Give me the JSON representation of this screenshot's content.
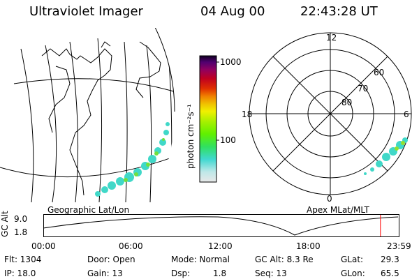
{
  "header": {
    "title": "Ultraviolet Imager",
    "date": "04 Aug 00",
    "time": "22:43:28 UT"
  },
  "colorbar": {
    "unit": "photon cm⁻²s⁻¹",
    "ticks": [
      "1000",
      "100"
    ],
    "stops": [
      "#e8e8e8",
      "#bfe8e8",
      "#40d8d0",
      "#30e060",
      "#60f000",
      "#a8f000",
      "#f0f000",
      "#f0c000",
      "#f08000",
      "#e03000",
      "#c00020",
      "#900060",
      "#500070",
      "#100020"
    ]
  },
  "map_left": {
    "label": "Geographic Lat/Lon"
  },
  "polar": {
    "label": "Apex MLat/MLT",
    "mlt_labels": {
      "top": "12",
      "left": "18",
      "right": "6",
      "bottom": "0"
    },
    "lat_labels": [
      "60",
      "70",
      "80"
    ]
  },
  "timeline": {
    "axis_title": "GC Alt",
    "y_ticks": [
      "9.0",
      "1.8"
    ],
    "x_ticks": [
      "00:00",
      "06:00",
      "12:00",
      "18:00",
      "23:59"
    ],
    "current_marker_hours": 22.72,
    "marker_color": "#ff0000"
  },
  "status": {
    "flt": "Flt: 1304",
    "door": "Door: Open",
    "mode": "Mode: Normal",
    "gc_alt": "GC Alt: 8.3 Re",
    "glat_label": "GLat:",
    "glat_value": "29.3",
    "ip": "IP: 18.0",
    "gain": "Gain: 13",
    "dsp_label": "Dsp:",
    "dsp_value": "1.8",
    "seq": "Seq: 13",
    "glon_label": "GLon:",
    "glon_value": "65.5"
  }
}
